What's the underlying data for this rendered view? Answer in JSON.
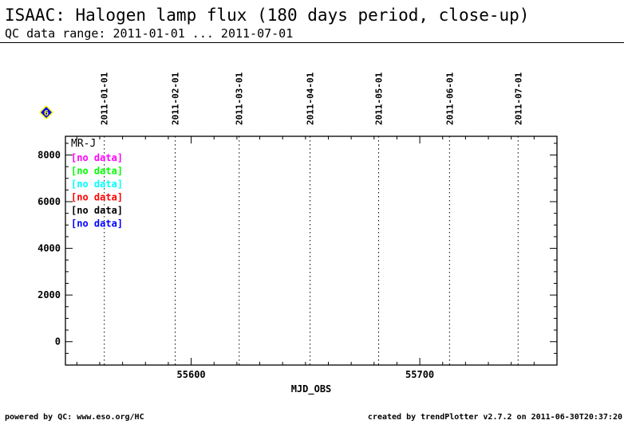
{
  "header": {
    "title": "ISAAC: Halogen lamp flux (180 days period, close-up)",
    "subtitle": "QC data range: 2011-01-01 ... 2011-07-01"
  },
  "footer": {
    "left": "powered by QC: www.eso.org/HC",
    "right": "created by trendPlotter v2.7.2 on 2011-06-30T20:37:20"
  },
  "marker_label": "6",
  "colors": {
    "marker_fill": "#0000ff",
    "marker_border": "#ffff00",
    "frame": "#000000"
  },
  "chart_data": {
    "type": "scatter",
    "xlabel": "MJD_OBS",
    "ylabel": "",
    "xlim": [
      55545,
      55760
    ],
    "ylim": [
      -1000,
      8800
    ],
    "xticks": [
      55600,
      55700
    ],
    "yticks": [
      0,
      2000,
      4000,
      6000,
      8000
    ],
    "date_markers": [
      {
        "label": "2011-01-01",
        "mjd": 55562
      },
      {
        "label": "2011-02-01",
        "mjd": 55593
      },
      {
        "label": "2011-03-01",
        "mjd": 55621
      },
      {
        "label": "2011-04-01",
        "mjd": 55652
      },
      {
        "label": "2011-05-01",
        "mjd": 55682
      },
      {
        "label": "2011-06-01",
        "mjd": 55713
      },
      {
        "label": "2011-07-01",
        "mjd": 55743
      }
    ],
    "legend_title": "MR-J",
    "series": [
      {
        "name": "[no data]",
        "color": "#ff00ff",
        "values": []
      },
      {
        "name": "[no data]",
        "color": "#00ff00",
        "values": []
      },
      {
        "name": "[no data]",
        "color": "#00ffff",
        "values": []
      },
      {
        "name": "[no data]",
        "color": "#ff0000",
        "values": []
      },
      {
        "name": "[no data]",
        "color": "#000000",
        "values": []
      },
      {
        "name": "[no data]",
        "color": "#0000ff",
        "values": []
      }
    ],
    "legend_placement": "top-left",
    "grid": false
  }
}
